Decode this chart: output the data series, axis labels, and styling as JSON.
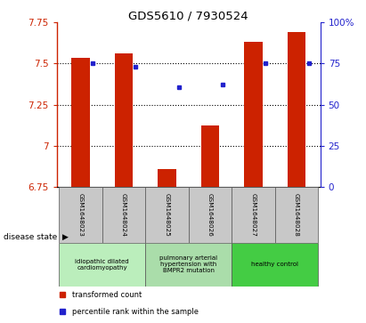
{
  "title": "GDS5610 / 7930524",
  "samples": [
    "GSM1648023",
    "GSM1648024",
    "GSM1648025",
    "GSM1648026",
    "GSM1648027",
    "GSM1648028"
  ],
  "bar_values": [
    7.535,
    7.56,
    6.855,
    7.12,
    7.635,
    7.695
  ],
  "bar_bottom": 6.75,
  "blue_dots_left": [
    7.5,
    7.48,
    7.355,
    7.375,
    7.5,
    7.5
  ],
  "ylim_left": [
    6.75,
    7.75
  ],
  "ylim_right": [
    0,
    100
  ],
  "yticks_left": [
    6.75,
    7.0,
    7.25,
    7.5,
    7.75
  ],
  "ytick_labels_left": [
    "6.75",
    "7",
    "7.25",
    "7.5",
    "7.75"
  ],
  "yticks_right": [
    0,
    25,
    50,
    75,
    100
  ],
  "ytick_labels_right": [
    "0",
    "25",
    "50",
    "75",
    "100%"
  ],
  "bar_color": "#cc2200",
  "dot_color": "#2222cc",
  "left_tick_color": "#cc2200",
  "right_tick_color": "#2222cc",
  "sample_bg_color": "#c8c8c8",
  "group_info": [
    [
      0,
      2,
      "#bbeebc",
      "idiopathic dilated\ncardiomyopathy"
    ],
    [
      2,
      4,
      "#aaddaa",
      "pulmonary arterial\nhypertension with\nBMPR2 mutation"
    ],
    [
      4,
      6,
      "#44cc44",
      "healthy control"
    ]
  ],
  "legend_bar_label": "transformed count",
  "legend_dot_label": "percentile rank within the sample",
  "disease_state_label": "disease state"
}
